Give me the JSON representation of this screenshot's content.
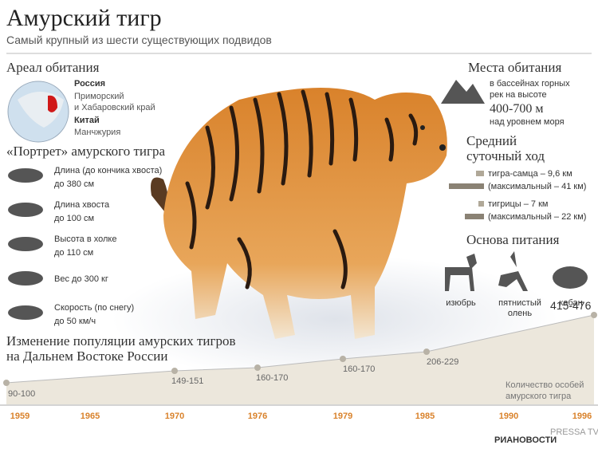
{
  "header": {
    "title": "Амурский тигр",
    "subtitle": "Самый крупный из шести существующих подвидов"
  },
  "habitat": {
    "title": "Ареал обитания",
    "russia": "Россия",
    "russia_regions": [
      "Приморский",
      "и Хабаровский край"
    ],
    "china": "Китай",
    "china_region": "Манчжурия"
  },
  "portrait": {
    "title": "«Портрет» амурского тигра",
    "items": [
      [
        "Длина (до кончика хвоста)",
        "до 380 см"
      ],
      [
        "Длина хвоста",
        "до 100 см"
      ],
      [
        "Высота в холке",
        "до 110 см"
      ],
      [
        "Вес до 300 кг"
      ],
      [
        "Скорость (по снегу)",
        "до 50 км/ч"
      ]
    ]
  },
  "places": {
    "title": "Места обитания",
    "lines": [
      "в бассейнах горных",
      "рек на высоте"
    ],
    "altitude": "400-700 м",
    "tail": "над уровнем моря"
  },
  "travel": {
    "title": [
      "Средний",
      "суточный ход"
    ],
    "items": [
      "тигра-самца – 9,6 км",
      "(максимальный – 41 км)",
      "тигрицы – 7 км",
      "(максимальный – 22 км)"
    ]
  },
  "food": {
    "title": "Основа питания",
    "items": [
      [
        "изюбрь"
      ],
      [
        "пятнистый",
        "олень"
      ],
      [
        "кабан"
      ]
    ]
  },
  "population": {
    "title": [
      "Изменение популяции амурских тигров",
      "на Дальнем Востоке России"
    ],
    "points": [
      "90-100",
      "149-151",
      "160-170",
      "160-170",
      "206-229",
      "415-476"
    ],
    "years": [
      "1959",
      "1965",
      "1970",
      "1976",
      "1979",
      "1985",
      "1990",
      "1996"
    ],
    "note": [
      "Количество особей",
      "амурского тигра"
    ]
  },
  "footer": {
    "source": "РИАНОВОСТИ",
    "watermark": "PRESSA TV"
  }
}
